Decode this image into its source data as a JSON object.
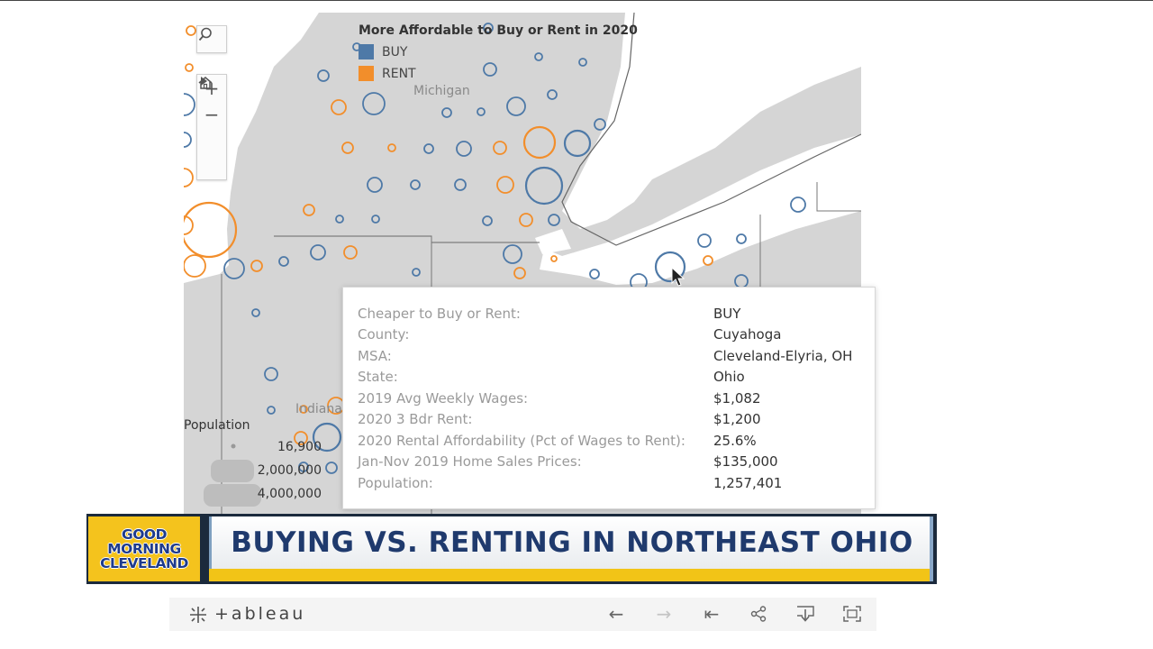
{
  "map": {
    "legend_title": "More Affordable to Buy or Rent in 2020",
    "legend_items": [
      {
        "label": "BUY",
        "color": "#4e79a7"
      },
      {
        "label": "RENT",
        "color": "#f28e2b"
      }
    ],
    "state_labels": {
      "michigan": "Michigan",
      "indiana": "Indiana"
    },
    "controls": [
      "search-icon",
      "zoom-in-icon",
      "zoom-out-icon",
      "home-icon",
      "play-icon"
    ],
    "size_legend": {
      "title": "Population",
      "values": [
        "16,900",
        "2,000,000",
        "4,000,000"
      ]
    }
  },
  "tooltip": {
    "rows": [
      {
        "label": "Cheaper to Buy or Rent:",
        "value": "BUY"
      },
      {
        "label": "County:",
        "value": "Cuyahoga"
      },
      {
        "label": "MSA:",
        "value": "Cleveland-Elyria, OH"
      },
      {
        "label": "State:",
        "value": "Ohio"
      },
      {
        "label": "2019 Avg Weekly Wages:",
        "value": "$1,082"
      },
      {
        "label": "2020 3 Bdr Rent:",
        "value": "$1,200"
      },
      {
        "label": "2020 Rental Affordability (Pct of Wages to Rent):",
        "value": "25.6%"
      },
      {
        "label": "Jan-Nov 2019 Home Sales Prices:",
        "value": "$135,000"
      },
      {
        "label": "Population:",
        "value": "1,257,401"
      }
    ]
  },
  "banner": {
    "logo_lines": [
      "GOOD",
      "MORNING",
      "CLEVELAND"
    ],
    "headline": "BUYING VS. RENTING IN NORTHEAST OHIO"
  },
  "toolbar": {
    "brand": "+ableau",
    "buttons": [
      "undo-icon",
      "redo-icon",
      "revert-icon",
      "share-icon",
      "download-icon",
      "fullscreen-icon"
    ]
  },
  "colors": {
    "buy": "#4e79a7",
    "rent": "#f28e2b",
    "land": "#d5d5d5",
    "water": "#ffffff"
  }
}
